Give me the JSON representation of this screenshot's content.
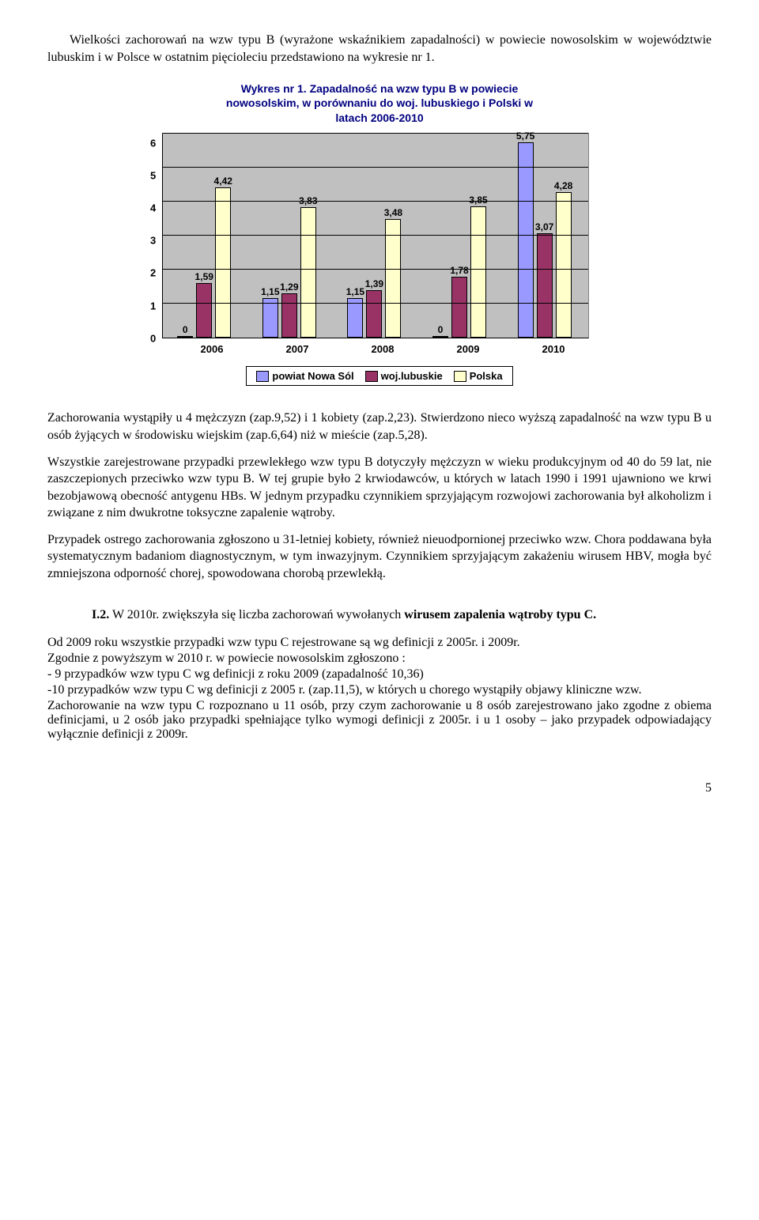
{
  "intro_para": "Wielkości zachorowań na wzw typu B (wyrażone wskaźnikiem zapadalności) w powiecie nowosolskim w  województwie lubuskim i w Polsce  w ostatnim pięcioleciu  przedstawiono na  wykresie nr 1.",
  "chart": {
    "type": "bar",
    "title_line1": "Wykres nr 1. Zapadalność na wzw typu B w powiecie",
    "title_line2": "nowosolskim,  w porównaniu do  woj. lubuskiego i Polski w",
    "title_line3": "latach 2006-2010",
    "categories": [
      "2006",
      "2007",
      "2008",
      "2009",
      "2010"
    ],
    "series": [
      {
        "name": "powiat Nowa Sól",
        "color": "#9999ff",
        "values": [
          0,
          1.15,
          1.15,
          0,
          5.75
        ]
      },
      {
        "name": "woj.lubuskie",
        "color": "#993366",
        "values": [
          1.59,
          1.29,
          1.39,
          1.78,
          3.07
        ]
      },
      {
        "name": "Polska",
        "color": "#ffffcc",
        "values": [
          4.42,
          3.83,
          3.48,
          3.85,
          4.28
        ]
      }
    ],
    "labels": [
      [
        "0",
        "1,59",
        "4,42"
      ],
      [
        "1,15",
        "1,29",
        "3,83"
      ],
      [
        "1,15",
        "1,39",
        "3,48"
      ],
      [
        "0",
        "1,78",
        "3,85"
      ],
      [
        "5,75",
        "3,07",
        "4,28"
      ]
    ],
    "ymax": 6,
    "yticks": [
      "0",
      "1",
      "2",
      "3",
      "4",
      "5",
      "6"
    ],
    "bg": "#c0c0c0",
    "legend_labels": [
      "powiat Nowa Sól",
      "woj.lubuskie",
      "Polska"
    ],
    "legend_colors": [
      "#9999ff",
      "#993366",
      "#ffffcc"
    ]
  },
  "body": {
    "p1": "Zachorowania wystąpiły u 4 mężczyzn (zap.9,52) i 1 kobiety (zap.2,23). Stwierdzono nieco wyższą zapadalność na wzw typu B u osób żyjących w środowisku wiejskim (zap.6,64) niż w mieście (zap.5,28).",
    "p2": "Wszystkie zarejestrowane przypadki  przewlekłego wzw typu B dotyczyły  mężczyzn w wieku produkcyjnym od 40 do 59 lat, nie zaszczepionych przeciwko wzw typu B. W tej grupie  było 2 krwiodawców, u których w latach 1990 i 1991 ujawniono we krwi bezobjawową obecność antygenu HBs. W jednym przypadku czynnikiem sprzyjającym rozwojowi zachorowania był alkoholizm i związane z nim dwukrotne toksyczne zapalenie wątroby.",
    "p3": "Przypadek ostrego zachorowania zgłoszono u 31-letniej kobiety, również  nieuodpornionej przeciwko wzw.  Chora poddawana była systematycznym badaniom diagnostycznym, w tym inwazyjnym. Czynnikiem sprzyjającym zakażeniu wirusem HBV, mogła być zmniejszona odporność chorej, spowodowana chorobą przewlekłą."
  },
  "section2": {
    "lead_label": "I.2.",
    "lead_text": " W 2010r. zwiększyła się liczba zachorowań wywołanych  ",
    "lead_bold_tail": "wirusem zapalenia wątroby typu C."
  },
  "tail": {
    "l1": "Od 2009 roku wszystkie przypadki wzw typu C rejestrowane są wg definicji z 2005r. i 2009r.",
    "l2": "Zgodnie z powyższym w 2010 r. w powiecie nowosolskim zgłoszono :",
    "l3": "- 9 przypadków wzw typu C wg definicji z roku 2009 (zapadalność 10,36)",
    "l4": "-10 przypadków wzw typu C  wg definicji z 2005 r. (zap.11,5), w których u chorego wystąpiły   objawy kliniczne  wzw.",
    "l5": "Zachorowanie na wzw typu C rozpoznano u 11 osób, przy czym zachorowanie u 8 osób zarejestrowano jako zgodne z obiema definicjami, u 2 osób  jako przypadki spełniające tylko wymogi definicji z 2005r. i u 1 osoby – jako przypadek odpowiadający wyłącznie definicji z 2009r."
  },
  "page_number": "5"
}
